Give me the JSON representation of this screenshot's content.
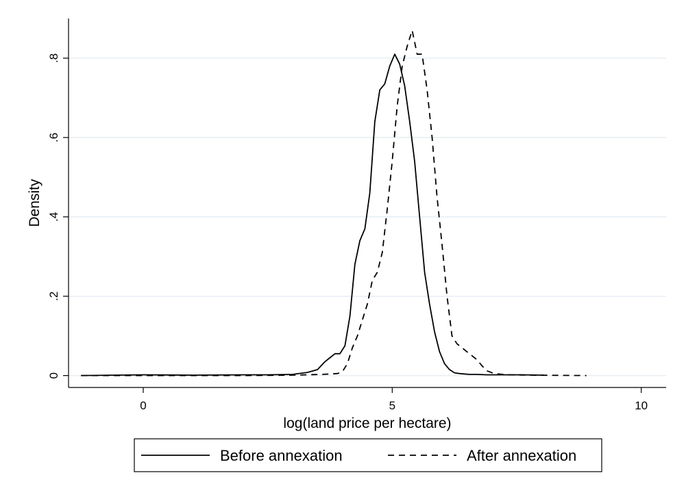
{
  "chart_data": {
    "type": "line",
    "title": "",
    "xlabel": "log(land price per hectare)",
    "ylabel": "Density",
    "xlim": [
      -1.5,
      10.5
    ],
    "ylim": [
      -0.03,
      0.9
    ],
    "xticks": [
      0,
      5,
      10
    ],
    "xtick_labels": [
      "0",
      "5",
      "10"
    ],
    "yticks": [
      0,
      0.2,
      0.4,
      0.6,
      0.8
    ],
    "ytick_labels": [
      "0",
      ".2",
      ".4",
      ".6",
      ".8"
    ],
    "grid": true,
    "legend_position": "bottom",
    "series": [
      {
        "name": "Before annexation",
        "style": "solid",
        "x": [
          -1.25,
          0,
          1,
          2,
          2.5,
          3,
          3.3,
          3.5,
          3.65,
          3.75,
          3.85,
          3.95,
          4.05,
          4.15,
          4.25,
          4.35,
          4.45,
          4.55,
          4.65,
          4.75,
          4.85,
          4.95,
          5.05,
          5.15,
          5.25,
          5.35,
          5.45,
          5.55,
          5.65,
          5.75,
          5.85,
          5.95,
          6.05,
          6.15,
          6.25,
          6.35,
          6.45,
          6.55,
          6.7,
          6.9,
          7.2,
          7.6,
          8.05
        ],
        "y": [
          0.0,
          0.002,
          0.001,
          0.002,
          0.002,
          0.003,
          0.008,
          0.015,
          0.035,
          0.045,
          0.055,
          0.055,
          0.075,
          0.15,
          0.28,
          0.34,
          0.37,
          0.46,
          0.64,
          0.72,
          0.735,
          0.78,
          0.81,
          0.785,
          0.73,
          0.64,
          0.54,
          0.4,
          0.26,
          0.18,
          0.11,
          0.06,
          0.03,
          0.015,
          0.007,
          0.005,
          0.004,
          0.003,
          0.003,
          0.002,
          0.002,
          0.002,
          0.001
        ]
      },
      {
        "name": "After annexation",
        "style": "dashed",
        "x": [
          -1.25,
          0,
          1,
          2,
          3,
          3.6,
          3.9,
          4.0,
          4.1,
          4.2,
          4.3,
          4.4,
          4.5,
          4.6,
          4.7,
          4.8,
          4.9,
          5.0,
          5.1,
          5.2,
          5.3,
          5.4,
          5.5,
          5.6,
          5.7,
          5.8,
          5.9,
          6.0,
          6.1,
          6.2,
          6.3,
          6.4,
          6.5,
          6.6,
          6.7,
          6.8,
          6.9,
          7.05,
          7.3,
          7.8,
          8.9
        ],
        "y": [
          0.0,
          0.0,
          0.0,
          0.0,
          0.001,
          0.003,
          0.005,
          0.01,
          0.03,
          0.07,
          0.1,
          0.14,
          0.18,
          0.24,
          0.26,
          0.31,
          0.42,
          0.54,
          0.68,
          0.78,
          0.83,
          0.87,
          0.81,
          0.81,
          0.72,
          0.6,
          0.45,
          0.33,
          0.2,
          0.1,
          0.08,
          0.07,
          0.06,
          0.05,
          0.04,
          0.025,
          0.012,
          0.005,
          0.002,
          0.001,
          0.0
        ]
      }
    ]
  }
}
